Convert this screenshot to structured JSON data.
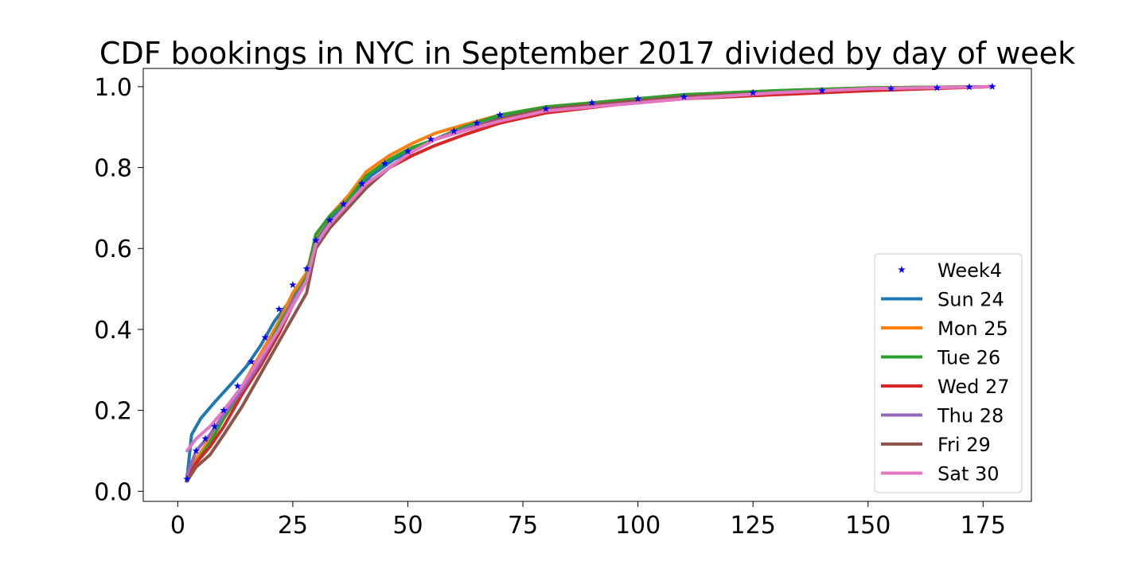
{
  "chart_data": {
    "type": "line",
    "title": "CDF bookings in NYC in September 2017 divided by day of week",
    "xlabel": "",
    "ylabel": "",
    "xlim": [
      -7.5,
      185.5
    ],
    "ylim": [
      -0.025,
      1.045
    ],
    "xticks": [
      0,
      25,
      50,
      75,
      100,
      125,
      150,
      175
    ],
    "yticks": [
      0.0,
      0.2,
      0.4,
      0.6,
      0.8,
      1.0
    ],
    "xtick_labels": [
      "0",
      "25",
      "50",
      "75",
      "100",
      "125",
      "150",
      "175"
    ],
    "ytick_labels": [
      "0.0",
      "0.2",
      "0.4",
      "0.6",
      "0.8",
      "1.0"
    ],
    "grid": false,
    "legend_position": "lower-right",
    "series": [
      {
        "name": "Week4",
        "style": "markers",
        "marker": "star",
        "color": "#0000ff",
        "x": [
          2,
          4,
          6,
          8,
          10,
          13,
          16,
          19,
          22,
          25,
          28,
          30,
          33,
          36,
          40,
          45,
          50,
          55,
          60,
          65,
          70,
          80,
          90,
          100,
          110,
          125,
          140,
          155,
          165,
          172,
          177
        ],
        "y": [
          0.03,
          0.1,
          0.13,
          0.16,
          0.2,
          0.26,
          0.32,
          0.38,
          0.45,
          0.51,
          0.55,
          0.62,
          0.67,
          0.71,
          0.76,
          0.81,
          0.84,
          0.87,
          0.89,
          0.91,
          0.93,
          0.945,
          0.96,
          0.97,
          0.975,
          0.985,
          0.99,
          0.995,
          0.997,
          0.999,
          1.0
        ]
      },
      {
        "name": "Sun 24",
        "style": "line",
        "color": "#1f77b4",
        "x": [
          2,
          3,
          5,
          8,
          12,
          15,
          18,
          21,
          25,
          28,
          30,
          33,
          37,
          42,
          47,
          52,
          58,
          65,
          75,
          90,
          110,
          130,
          150,
          177
        ],
        "y": [
          0.03,
          0.14,
          0.18,
          0.22,
          0.27,
          0.31,
          0.36,
          0.42,
          0.48,
          0.53,
          0.62,
          0.67,
          0.72,
          0.78,
          0.82,
          0.85,
          0.88,
          0.91,
          0.94,
          0.96,
          0.98,
          0.99,
          0.997,
          1.0
        ]
      },
      {
        "name": "Mon 25",
        "style": "line",
        "color": "#ff7f0e",
        "x": [
          2,
          4,
          7,
          10,
          14,
          18,
          22,
          25,
          28,
          30,
          33,
          37,
          41,
          46,
          51,
          56,
          62,
          70,
          80,
          95,
          110,
          130,
          150,
          177
        ],
        "y": [
          0.04,
          0.08,
          0.13,
          0.19,
          0.26,
          0.34,
          0.42,
          0.49,
          0.54,
          0.63,
          0.68,
          0.73,
          0.79,
          0.83,
          0.86,
          0.885,
          0.905,
          0.93,
          0.95,
          0.965,
          0.98,
          0.99,
          0.997,
          1.0
        ]
      },
      {
        "name": "Tue 26",
        "style": "line",
        "color": "#2ca02c",
        "x": [
          2,
          4,
          7,
          10,
          14,
          18,
          22,
          25,
          28,
          30,
          33,
          37,
          41,
          46,
          51,
          56,
          62,
          70,
          80,
          95,
          110,
          130,
          150,
          177
        ],
        "y": [
          0.04,
          0.07,
          0.12,
          0.18,
          0.25,
          0.32,
          0.41,
          0.47,
          0.53,
          0.635,
          0.68,
          0.72,
          0.78,
          0.82,
          0.85,
          0.87,
          0.9,
          0.93,
          0.95,
          0.965,
          0.98,
          0.99,
          0.997,
          1.0
        ]
      },
      {
        "name": "Wed 27",
        "style": "line",
        "color": "#d62728",
        "x": [
          2,
          4,
          7,
          10,
          14,
          18,
          22,
          25,
          28,
          30,
          33,
          37,
          41,
          46,
          51,
          56,
          62,
          70,
          80,
          95,
          110,
          130,
          150,
          177
        ],
        "y": [
          0.03,
          0.07,
          0.11,
          0.16,
          0.24,
          0.31,
          0.39,
          0.46,
          0.52,
          0.61,
          0.66,
          0.71,
          0.76,
          0.8,
          0.83,
          0.855,
          0.88,
          0.91,
          0.935,
          0.955,
          0.97,
          0.98,
          0.99,
          1.0
        ]
      },
      {
        "name": "Thu 28",
        "style": "line",
        "color": "#9467bd",
        "x": [
          2,
          4,
          7,
          10,
          14,
          18,
          22,
          25,
          28,
          30,
          33,
          37,
          41,
          46,
          51,
          56,
          62,
          70,
          80,
          95,
          110,
          130,
          150,
          177
        ],
        "y": [
          0.04,
          0.1,
          0.14,
          0.19,
          0.25,
          0.32,
          0.4,
          0.47,
          0.52,
          0.61,
          0.66,
          0.71,
          0.76,
          0.8,
          0.84,
          0.87,
          0.895,
          0.92,
          0.945,
          0.96,
          0.975,
          0.985,
          0.995,
          1.0
        ]
      },
      {
        "name": "Fri 29",
        "style": "line",
        "color": "#8c564b",
        "x": [
          2,
          4,
          7,
          10,
          14,
          18,
          22,
          25,
          28,
          30,
          33,
          37,
          41,
          46,
          51,
          56,
          62,
          70,
          80,
          95,
          110,
          130,
          150,
          177
        ],
        "y": [
          0.025,
          0.06,
          0.09,
          0.14,
          0.21,
          0.29,
          0.37,
          0.43,
          0.49,
          0.6,
          0.65,
          0.7,
          0.75,
          0.8,
          0.84,
          0.87,
          0.89,
          0.92,
          0.945,
          0.96,
          0.975,
          0.985,
          0.995,
          1.0
        ]
      },
      {
        "name": "Sat 30",
        "style": "line",
        "color": "#e377c2",
        "x": [
          2,
          4,
          7,
          10,
          14,
          18,
          22,
          25,
          28,
          30,
          33,
          37,
          41,
          46,
          51,
          56,
          62,
          70,
          80,
          95,
          110,
          130,
          150,
          177
        ],
        "y": [
          0.1,
          0.13,
          0.16,
          0.2,
          0.26,
          0.33,
          0.4,
          0.46,
          0.52,
          0.61,
          0.66,
          0.71,
          0.76,
          0.8,
          0.84,
          0.87,
          0.89,
          0.915,
          0.94,
          0.955,
          0.97,
          0.985,
          0.995,
          1.0
        ]
      }
    ]
  }
}
